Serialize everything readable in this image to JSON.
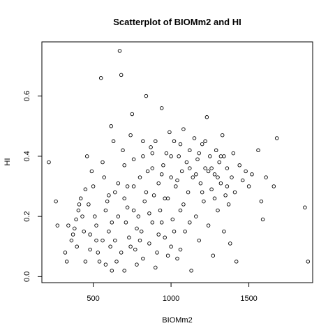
{
  "chart_data": {
    "type": "scatter",
    "title": "Scatterplot of BIOMm2 and HI",
    "xlabel": "BIOMm2",
    "ylabel": "HI",
    "xlim": [
      170,
      1910
    ],
    "ylim": [
      -0.02,
      0.78
    ],
    "x_ticks": [
      {
        "value": 500,
        "label": "500"
      },
      {
        "value": 1000,
        "label": "1000"
      },
      {
        "value": 1500,
        "label": "1500"
      }
    ],
    "y_ticks": [
      {
        "value": 0.0,
        "label": "0.0"
      },
      {
        "value": 0.2,
        "label": "0.2"
      },
      {
        "value": 0.4,
        "label": "0.4"
      },
      {
        "value": 0.6,
        "label": "0.6"
      }
    ],
    "grid": false,
    "legend": "none",
    "marker": "open-circle",
    "point_color": "#000000",
    "points": [
      [
        215,
        0.38
      ],
      [
        260,
        0.25
      ],
      [
        270,
        0.17
      ],
      [
        320,
        0.08
      ],
      [
        330,
        0.05
      ],
      [
        340,
        0.17
      ],
      [
        360,
        0.12
      ],
      [
        370,
        0.14
      ],
      [
        380,
        0.16
      ],
      [
        390,
        0.19
      ],
      [
        395,
        0.1
      ],
      [
        405,
        0.22
      ],
      [
        410,
        0.24
      ],
      [
        420,
        0.26
      ],
      [
        430,
        0.2
      ],
      [
        440,
        0.15
      ],
      [
        450,
        0.29
      ],
      [
        460,
        0.4
      ],
      [
        470,
        0.24
      ],
      [
        480,
        0.14
      ],
      [
        490,
        0.35
      ],
      [
        500,
        0.3
      ],
      [
        510,
        0.2
      ],
      [
        520,
        0.12
      ],
      [
        530,
        0.08
      ],
      [
        540,
        0.05
      ],
      [
        550,
        0.66
      ],
      [
        560,
        0.38
      ],
      [
        570,
        0.33
      ],
      [
        580,
        0.22
      ],
      [
        590,
        0.25
      ],
      [
        600,
        0.15
      ],
      [
        610,
        0.1
      ],
      [
        615,
        0.5
      ],
      [
        620,
        0.02
      ],
      [
        630,
        0.45
      ],
      [
        640,
        0.28
      ],
      [
        650,
        0.05
      ],
      [
        660,
        0.31
      ],
      [
        670,
        0.75
      ],
      [
        680,
        0.67
      ],
      [
        690,
        0.42
      ],
      [
        700,
        0.37
      ],
      [
        710,
        0.18
      ],
      [
        720,
        0.23
      ],
      [
        730,
        0.13
      ],
      [
        740,
        0.47
      ],
      [
        750,
        0.54
      ],
      [
        760,
        0.3
      ],
      [
        770,
        0.09
      ],
      [
        780,
        0.04
      ],
      [
        790,
        0.2
      ],
      [
        800,
        0.33
      ],
      [
        810,
        0.15
      ],
      [
        820,
        0.4
      ],
      [
        830,
        0.25
      ],
      [
        840,
        0.6
      ],
      [
        850,
        0.35
      ],
      [
        860,
        0.11
      ],
      [
        870,
        0.43
      ],
      [
        880,
        0.18
      ],
      [
        890,
        0.27
      ],
      [
        900,
        0.45
      ],
      [
        910,
        0.08
      ],
      [
        920,
        0.31
      ],
      [
        930,
        0.22
      ],
      [
        940,
        0.56
      ],
      [
        950,
        0.37
      ],
      [
        960,
        0.13
      ],
      [
        970,
        0.41
      ],
      [
        980,
        0.26
      ],
      [
        990,
        0.48
      ],
      [
        1000,
        0.33
      ],
      [
        1010,
        0.19
      ],
      [
        1020,
        0.45
      ],
      [
        1030,
        0.3
      ],
      [
        1040,
        0.06
      ],
      [
        1050,
        0.4
      ],
      [
        1060,
        0.22
      ],
      [
        1070,
        0.35
      ],
      [
        1080,
        0.49
      ],
      [
        1090,
        0.15
      ],
      [
        1100,
        0.38
      ],
      [
        1110,
        0.28
      ],
      [
        1120,
        0.42
      ],
      [
        1130,
        0.02
      ],
      [
        1140,
        0.33
      ],
      [
        1150,
        0.46
      ],
      [
        1160,
        0.2
      ],
      [
        1170,
        0.39
      ],
      [
        1180,
        0.12
      ],
      [
        1190,
        0.31
      ],
      [
        1200,
        0.44
      ],
      [
        1210,
        0.25
      ],
      [
        1220,
        0.36
      ],
      [
        1230,
        0.53
      ],
      [
        1240,
        0.17
      ],
      [
        1250,
        0.4
      ],
      [
        1260,
        0.29
      ],
      [
        1270,
        0.07
      ],
      [
        1280,
        0.34
      ],
      [
        1290,
        0.42
      ],
      [
        1300,
        0.22
      ],
      [
        1310,
        0.38
      ],
      [
        1320,
        0.31
      ],
      [
        1330,
        0.47
      ],
      [
        1340,
        0.15
      ],
      [
        1350,
        0.27
      ],
      [
        1360,
        0.36
      ],
      [
        1370,
        0.24
      ],
      [
        1380,
        0.11
      ],
      [
        1390,
        0.33
      ],
      [
        1400,
        0.41
      ],
      [
        1410,
        0.28
      ],
      [
        1420,
        0.05
      ],
      [
        1440,
        0.37
      ],
      [
        1460,
        0.32
      ],
      [
        1480,
        0.35
      ],
      [
        1500,
        0.3
      ],
      [
        1520,
        0.34
      ],
      [
        1560,
        0.42
      ],
      [
        1580,
        0.25
      ],
      [
        1590,
        0.19
      ],
      [
        1610,
        0.33
      ],
      [
        1660,
        0.3
      ],
      [
        1680,
        0.46
      ],
      [
        1860,
        0.23
      ],
      [
        1880,
        0.05
      ],
      [
        560,
        0.12
      ],
      [
        620,
        0.18
      ],
      [
        680,
        0.08
      ],
      [
        720,
        0.3
      ],
      [
        760,
        0.22
      ],
      [
        800,
        0.12
      ],
      [
        840,
        0.28
      ],
      [
        880,
        0.36
      ],
      [
        920,
        0.14
      ],
      [
        960,
        0.26
      ],
      [
        1000,
        0.1
      ],
      [
        1040,
        0.32
      ],
      [
        1080,
        0.24
      ],
      [
        1120,
        0.18
      ],
      [
        1160,
        0.34
      ],
      [
        1200,
        0.28
      ],
      [
        1240,
        0.35
      ],
      [
        1280,
        0.26
      ],
      [
        1320,
        0.4
      ],
      [
        1360,
        0.3
      ],
      [
        450,
        0.05
      ],
      [
        480,
        0.09
      ],
      [
        520,
        0.17
      ],
      [
        580,
        0.04
      ],
      [
        640,
        0.12
      ],
      [
        700,
        0.02
      ],
      [
        740,
        0.1
      ],
      [
        780,
        0.16
      ],
      [
        820,
        0.06
      ],
      [
        860,
        0.21
      ],
      [
        900,
        0.03
      ],
      [
        940,
        0.18
      ],
      [
        980,
        0.07
      ],
      [
        1020,
        0.15
      ],
      [
        1060,
        0.09
      ],
      [
        600,
        0.27
      ],
      [
        660,
        0.2
      ],
      [
        700,
        0.26
      ],
      [
        760,
        0.39
      ],
      [
        820,
        0.45
      ],
      [
        880,
        0.41
      ],
      [
        940,
        0.34
      ],
      [
        1000,
        0.4
      ],
      [
        1060,
        0.44
      ],
      [
        1120,
        0.36
      ],
      [
        1180,
        0.41
      ],
      [
        1220,
        0.45
      ],
      [
        1260,
        0.36
      ],
      [
        1300,
        0.33
      ],
      [
        1340,
        0.4
      ]
    ]
  }
}
